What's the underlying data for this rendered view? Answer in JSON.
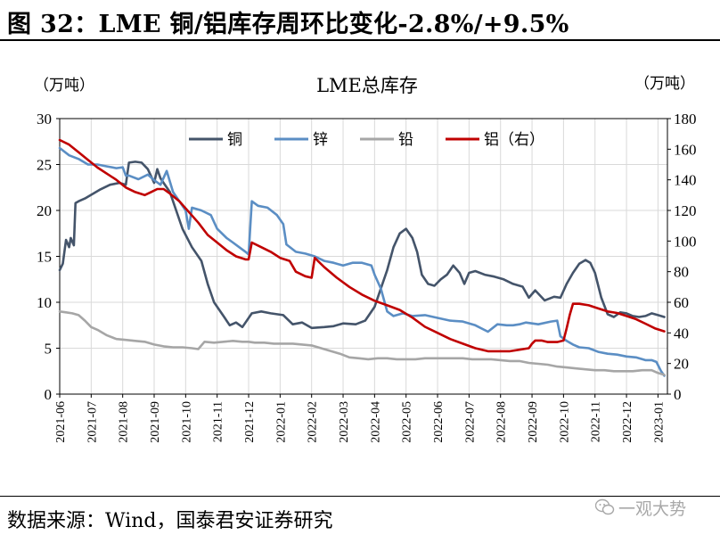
{
  "header": {
    "title": "图 32：LME 铜/铝库存周环比变化-2.8%/+9.5%"
  },
  "footer": {
    "source": "数据来源：Wind，国泰君安证券研究"
  },
  "watermark": {
    "text": "一观大势"
  },
  "chart_data": {
    "type": "line",
    "title": "LME总库存",
    "ylabel_left": "（万吨）",
    "ylabel_right": "（万吨）",
    "ylim_left": [
      0,
      30
    ],
    "yticks_left": [
      0,
      5,
      10,
      15,
      20,
      25,
      30
    ],
    "ylim_right": [
      0,
      180
    ],
    "yticks_right": [
      0,
      20,
      40,
      60,
      80,
      100,
      120,
      140,
      160,
      180
    ],
    "xlim": [
      0,
      19.3
    ],
    "x_ticks": [
      "2021-06",
      "2021-07",
      "2021-08",
      "2021-09",
      "2021-10",
      "2021-11",
      "2021-12",
      "2022-01",
      "2022-02",
      "2022-03",
      "2022-04",
      "2022-05",
      "2022-06",
      "2022-07",
      "2022-08",
      "2022-09",
      "2022-10",
      "2022-11",
      "2022-12",
      "2023-01"
    ],
    "grid": true,
    "legend_position": "top",
    "series": [
      {
        "name": "铜",
        "axis": "left",
        "color": "#44546a",
        "x": [
          0,
          0.1,
          0.2,
          0.3,
          0.35,
          0.45,
          0.5,
          0.6,
          0.8,
          1.0,
          1.3,
          1.6,
          1.9,
          2.1,
          2.2,
          2.4,
          2.6,
          2.8,
          3.0,
          3.1,
          3.2,
          3.3,
          3.5,
          3.7,
          3.9,
          4.2,
          4.5,
          4.7,
          4.9,
          5.2,
          5.4,
          5.6,
          5.8,
          6.1,
          6.4,
          6.7,
          6.9,
          7.1,
          7.4,
          7.7,
          8.0,
          8.4,
          8.7,
          9.0,
          9.4,
          9.7,
          10.0,
          10.2,
          10.4,
          10.6,
          10.8,
          11.0,
          11.2,
          11.35,
          11.5,
          11.7,
          11.9,
          12.1,
          12.3,
          12.5,
          12.7,
          12.85,
          13.0,
          13.2,
          13.5,
          13.8,
          14.1,
          14.4,
          14.7,
          14.9,
          15.1,
          15.4,
          15.7,
          15.9,
          16.1,
          16.3,
          16.5,
          16.7,
          16.85,
          17.0,
          17.2,
          17.4,
          17.6,
          17.8,
          18.0,
          18.2,
          18.4,
          18.6,
          18.8,
          19.0,
          19.2
        ],
        "values": [
          13.5,
          14.2,
          16.8,
          16.0,
          17.0,
          16.2,
          20.8,
          21.0,
          21.3,
          21.7,
          22.3,
          22.8,
          23.0,
          22.8,
          25.2,
          25.3,
          25.2,
          24.5,
          23.0,
          24.5,
          23.5,
          23.0,
          22.0,
          20.0,
          18.0,
          16.0,
          14.5,
          12.0,
          10.0,
          8.5,
          7.5,
          7.8,
          7.3,
          8.8,
          9.0,
          8.8,
          8.7,
          8.6,
          7.6,
          7.8,
          7.2,
          7.3,
          7.4,
          7.7,
          7.6,
          8.0,
          9.5,
          11.5,
          13.5,
          16.0,
          17.5,
          18.0,
          17.0,
          15.5,
          13.0,
          12.0,
          11.8,
          12.5,
          13.0,
          14.0,
          13.2,
          12.0,
          13.2,
          13.4,
          13.0,
          12.8,
          12.5,
          12.0,
          11.7,
          10.5,
          11.3,
          10.2,
          10.6,
          10.5,
          12.0,
          13.2,
          14.2,
          14.6,
          14.3,
          13.2,
          10.5,
          8.7,
          8.4,
          8.9,
          8.8,
          8.5,
          8.4,
          8.5,
          8.8,
          8.6,
          8.4
        ]
      },
      {
        "name": "锌",
        "axis": "left",
        "color": "#5b8ec4",
        "x": [
          0,
          0.3,
          0.6,
          0.9,
          1.2,
          1.5,
          1.8,
          2.0,
          2.1,
          2.2,
          2.5,
          2.8,
          3.0,
          3.2,
          3.4,
          3.6,
          3.8,
          4.0,
          4.1,
          4.2,
          4.5,
          4.8,
          5.0,
          5.3,
          5.5,
          5.7,
          5.9,
          6.0,
          6.1,
          6.3,
          6.6,
          6.9,
          7.1,
          7.2,
          7.5,
          7.8,
          8.1,
          8.4,
          8.7,
          9.0,
          9.3,
          9.6,
          9.9,
          10.0,
          10.2,
          10.4,
          10.6,
          10.9,
          11.2,
          11.6,
          12.0,
          12.4,
          12.8,
          13.2,
          13.6,
          13.9,
          14.2,
          14.4,
          14.6,
          14.8,
          15.2,
          15.6,
          15.8,
          15.9,
          16.1,
          16.3,
          16.5,
          16.8,
          17.1,
          17.4,
          17.7,
          18.0,
          18.3,
          18.6,
          18.8,
          18.95,
          19.1,
          19.2
        ],
        "values": [
          26.8,
          26.0,
          25.6,
          25.0,
          25.0,
          24.8,
          24.6,
          24.7,
          23.8,
          23.8,
          23.4,
          23.9,
          23.3,
          22.8,
          24.3,
          22.0,
          21.0,
          20.0,
          18.0,
          20.3,
          20.0,
          19.5,
          18.0,
          17.0,
          16.5,
          16.0,
          15.5,
          15.2,
          21.0,
          20.5,
          20.3,
          19.5,
          18.5,
          16.3,
          15.5,
          15.3,
          15.0,
          14.5,
          14.3,
          14.0,
          14.3,
          14.3,
          14.0,
          13.0,
          11.5,
          9.0,
          8.5,
          8.8,
          8.5,
          8.6,
          8.3,
          8.0,
          7.9,
          7.5,
          6.8,
          7.6,
          7.5,
          7.5,
          7.6,
          7.8,
          7.6,
          7.9,
          8.0,
          6.3,
          5.8,
          5.4,
          5.1,
          5.0,
          4.6,
          4.4,
          4.3,
          4.1,
          4.0,
          3.7,
          3.7,
          3.5,
          2.5,
          2.0
        ]
      },
      {
        "name": "铅",
        "axis": "left",
        "color": "#a6a6a6",
        "x": [
          0,
          0.2,
          0.4,
          0.6,
          0.8,
          1.0,
          1.2,
          1.5,
          1.8,
          2.1,
          2.4,
          2.7,
          3.0,
          3.3,
          3.6,
          3.9,
          4.2,
          4.4,
          4.6,
          4.9,
          5.2,
          5.5,
          5.8,
          6.0,
          6.2,
          6.5,
          6.8,
          7.1,
          7.4,
          7.7,
          8.0,
          8.3,
          8.6,
          8.9,
          9.2,
          9.5,
          9.8,
          10.1,
          10.4,
          10.7,
          11.0,
          11.3,
          11.6,
          11.9,
          12.2,
          12.5,
          12.8,
          13.1,
          13.4,
          13.7,
          14.0,
          14.3,
          14.6,
          14.9,
          15.2,
          15.5,
          15.8,
          16.1,
          16.4,
          16.7,
          17.0,
          17.3,
          17.6,
          17.9,
          18.2,
          18.5,
          18.8,
          19.0,
          19.2
        ],
        "values": [
          9.0,
          8.9,
          8.8,
          8.6,
          8.0,
          7.3,
          7.0,
          6.4,
          6.0,
          5.9,
          5.8,
          5.7,
          5.4,
          5.2,
          5.1,
          5.1,
          5.0,
          4.9,
          5.7,
          5.6,
          5.7,
          5.8,
          5.7,
          5.7,
          5.6,
          5.6,
          5.5,
          5.5,
          5.5,
          5.4,
          5.3,
          5.0,
          4.7,
          4.4,
          4.0,
          3.9,
          3.8,
          3.9,
          3.9,
          3.8,
          3.8,
          3.8,
          3.9,
          3.9,
          3.9,
          3.9,
          3.9,
          3.8,
          3.8,
          3.8,
          3.7,
          3.6,
          3.6,
          3.4,
          3.3,
          3.2,
          3.0,
          2.9,
          2.8,
          2.7,
          2.6,
          2.6,
          2.5,
          2.5,
          2.5,
          2.6,
          2.6,
          2.3,
          2.1
        ]
      },
      {
        "name": "铝（右）",
        "axis": "right",
        "color": "#c00000",
        "x": [
          0,
          0.3,
          0.6,
          0.9,
          1.2,
          1.5,
          1.8,
          2.1,
          2.4,
          2.7,
          2.9,
          3.1,
          3.3,
          3.5,
          3.8,
          4.1,
          4.4,
          4.7,
          5.0,
          5.3,
          5.6,
          5.9,
          6.0,
          6.1,
          6.4,
          6.7,
          7.0,
          7.3,
          7.5,
          7.8,
          8.0,
          8.1,
          8.4,
          8.8,
          9.2,
          9.6,
          10.0,
          10.4,
          10.8,
          11.2,
          11.6,
          12.0,
          12.4,
          12.8,
          13.2,
          13.6,
          14.0,
          14.3,
          14.6,
          14.9,
          15.0,
          15.1,
          15.3,
          15.5,
          15.8,
          16.0,
          16.1,
          16.2,
          16.3,
          16.5,
          16.8,
          17.1,
          17.4,
          17.7,
          18.0,
          18.3,
          18.6,
          18.9,
          19.2
        ],
        "values": [
          166,
          163,
          158,
          153,
          148,
          144,
          140,
          135,
          132,
          130,
          132,
          134,
          134,
          131,
          126,
          119,
          112,
          104,
          99,
          94,
          90,
          88,
          88,
          99,
          96,
          93,
          89,
          87,
          80,
          77,
          76,
          89,
          83,
          76,
          70,
          65,
          61,
          58,
          55,
          50,
          44,
          40,
          36,
          33,
          30,
          28,
          28,
          28,
          29,
          30,
          33,
          35,
          35,
          34,
          34,
          35,
          43,
          52,
          59,
          59,
          58,
          56,
          54,
          53,
          51,
          49,
          46,
          43,
          41
        ]
      }
    ]
  }
}
